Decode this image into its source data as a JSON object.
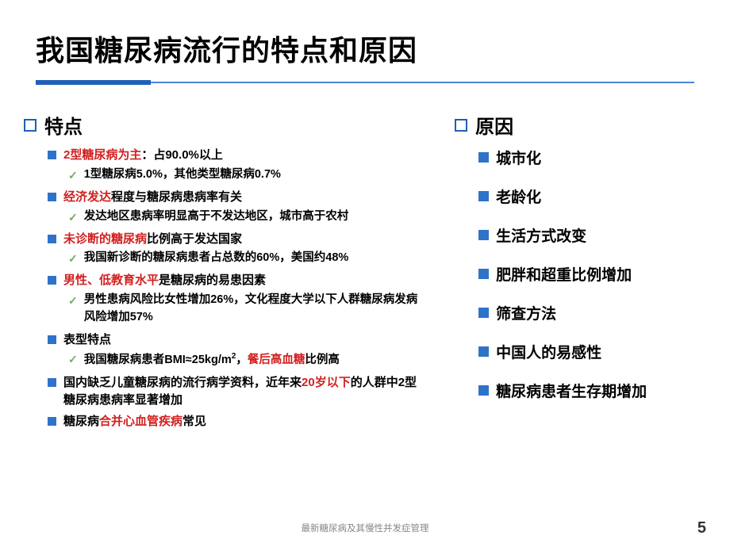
{
  "title": "我国糖尿病流行的特点和原因",
  "left": {
    "heading": "特点",
    "items": [
      {
        "segments": [
          {
            "text": "2型糖尿病为主",
            "cls": "hl-red"
          },
          {
            "text": "：占90.0%以上",
            "cls": "hl-black"
          }
        ],
        "sub": [
          {
            "segments": [
              {
                "text": "1型糖尿病5.0%，其他类型糖尿病0.7%",
                "cls": "hl-black"
              }
            ]
          }
        ]
      },
      {
        "segments": [
          {
            "text": "经济发达",
            "cls": "hl-red"
          },
          {
            "text": "程度与糖尿病患病率有关",
            "cls": "hl-black"
          }
        ],
        "sub": [
          {
            "segments": [
              {
                "text": "发达地区患病率明显高于不发达地区，城市高于农村",
                "cls": "hl-black"
              }
            ]
          }
        ]
      },
      {
        "segments": [
          {
            "text": "未诊断的糖尿病",
            "cls": "hl-red"
          },
          {
            "text": "比例高于发达国家",
            "cls": "hl-black"
          }
        ],
        "sub": [
          {
            "segments": [
              {
                "text": "我国新诊断的糖尿病患者占总数的60%，美国约48%",
                "cls": "hl-black"
              }
            ]
          }
        ]
      },
      {
        "segments": [
          {
            "text": "男性、低教育水平",
            "cls": "hl-red"
          },
          {
            "text": "是糖尿病的易患因素",
            "cls": "hl-black"
          }
        ],
        "sub": [
          {
            "segments": [
              {
                "text": "男性患病风险比女性增加26%，文化程度大学以下人群糖尿病发病风险增加57%",
                "cls": "hl-black"
              }
            ]
          }
        ]
      },
      {
        "segments": [
          {
            "text": "表型特点",
            "cls": "hl-black"
          }
        ],
        "sub": [
          {
            "segments": [
              {
                "text": "我国糖尿病患者BMI≈25kg/m",
                "cls": "hl-black"
              },
              {
                "text": "2",
                "cls": "hl-black",
                "sup": true
              },
              {
                "text": "，",
                "cls": "hl-black"
              },
              {
                "text": "餐后高血糖",
                "cls": "hl-red"
              },
              {
                "text": "比例高",
                "cls": "hl-black"
              }
            ]
          }
        ]
      },
      {
        "segments": [
          {
            "text": "国内缺乏儿童糖尿病的流行病学资料，近年来",
            "cls": "hl-black"
          },
          {
            "text": "20岁以下",
            "cls": "hl-red"
          },
          {
            "text": "的人群中2型糖尿病患病率显著增加",
            "cls": "hl-black"
          }
        ],
        "sub": []
      },
      {
        "segments": [
          {
            "text": "糖尿病",
            "cls": "hl-black"
          },
          {
            "text": "合并心血管疾病",
            "cls": "hl-red"
          },
          {
            "text": "常见",
            "cls": "hl-black"
          }
        ],
        "sub": []
      }
    ]
  },
  "right": {
    "heading": "原因",
    "items": [
      "城市化",
      "老龄化",
      "生活方式改变",
      "肥胖和超重比例增加",
      "筛查方法",
      "中国人的易感性",
      "糖尿病患者生存期增加"
    ]
  },
  "footer": "最新糖尿病及其慢性并发症管理",
  "page": "5",
  "colors": {
    "accent": "#1f5fb8",
    "bullet": "#2f73c9",
    "red": "#d22020",
    "check": "#7aa85f"
  }
}
